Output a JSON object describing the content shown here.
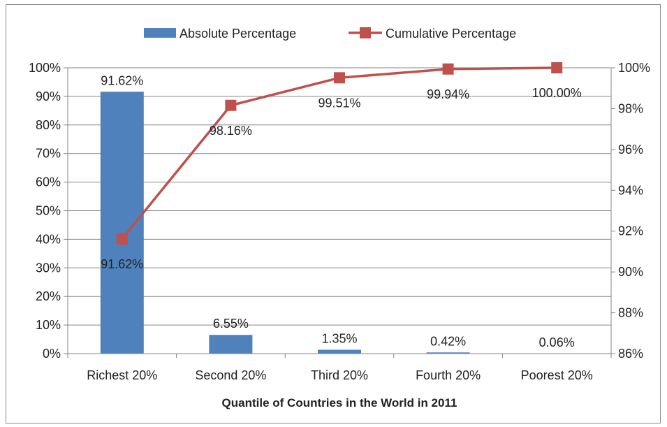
{
  "chart_data": {
    "type": "bar",
    "categories": [
      "Richest 20%",
      "Second 20%",
      "Third 20%",
      "Fourth 20%",
      "Poorest 20%"
    ],
    "series": [
      {
        "name": "Absolute Percentage",
        "type": "bar",
        "axis": "left",
        "values": [
          91.62,
          6.55,
          1.35,
          0.42,
          0.06
        ],
        "labels": [
          "91.62%",
          "6.55%",
          "1.35%",
          "0.42%",
          "0.06%"
        ],
        "color": "#4f81bd"
      },
      {
        "name": "Cumulative Percentage",
        "type": "line",
        "axis": "right",
        "values": [
          91.62,
          98.16,
          99.51,
          99.94,
          100.0
        ],
        "labels": [
          "91.62%",
          "98.16%",
          "99.51%",
          "99.94%",
          "100.00%"
        ],
        "color": "#c0504d"
      }
    ],
    "xlabel": "Quantile of Countries in the World in 2011",
    "y_left": {
      "ylim": [
        0,
        100
      ],
      "ticks": [
        0,
        10,
        20,
        30,
        40,
        50,
        60,
        70,
        80,
        90,
        100
      ],
      "tick_labels": [
        "0%",
        "10%",
        "20%",
        "30%",
        "40%",
        "50%",
        "60%",
        "70%",
        "80%",
        "90%",
        "100%"
      ]
    },
    "y_right": {
      "ylim": [
        86,
        100
      ],
      "ticks": [
        86,
        88,
        90,
        92,
        94,
        96,
        98,
        100
      ],
      "tick_labels": [
        "86%",
        "88%",
        "90%",
        "92%",
        "94%",
        "96%",
        "98%",
        "100%"
      ]
    },
    "grid": true,
    "legend": "top"
  }
}
